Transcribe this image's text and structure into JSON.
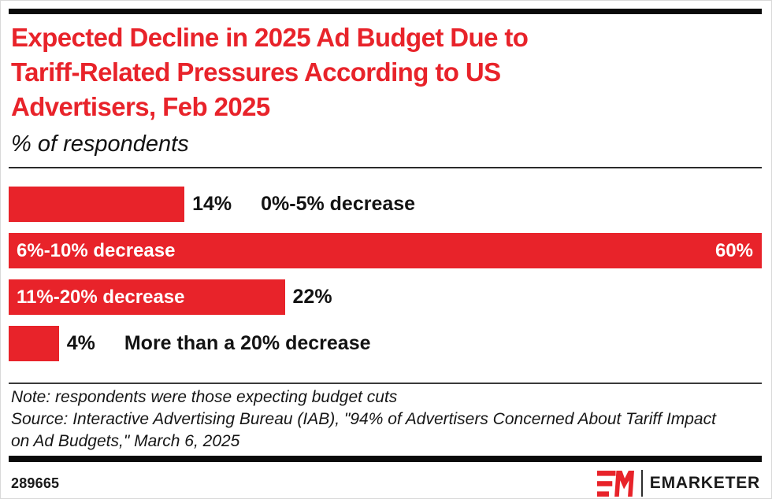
{
  "page": {
    "background": "#ffffff",
    "accent_red": "#E8232A",
    "rule_black": "#0a0a0a"
  },
  "header": {
    "title": "Expected Decline in 2025 Ad Budget Due to Tariff-Related Pressures According to US Advertisers, Feb 2025",
    "title_lines": [
      "Expected Decline in 2025 Ad Budget Due to",
      "Tariff-Related Pressures According to US",
      "Advertisers, Feb 2025"
    ],
    "subtitle": "% of respondents"
  },
  "chart_data": {
    "type": "bar",
    "orientation": "horizontal",
    "title": "Expected Decline in 2025 Ad Budget Due to Tariff-Related Pressures According to US Advertisers, Feb 2025",
    "subtitle": "% of respondents",
    "categories": [
      "0%-5% decrease",
      "6%-10% decrease",
      "11%-20% decrease",
      "More than a 20% decrease"
    ],
    "values": [
      14,
      60,
      22,
      4
    ],
    "value_labels": [
      "14%",
      "60%",
      "22%",
      "4%"
    ],
    "xlim": [
      0,
      60
    ],
    "grid": false,
    "legend": "none",
    "bar_color": "#E8232A",
    "rows": [
      {
        "category": "0%-5% decrease",
        "value": 14,
        "value_label": "14%",
        "category_position": "outside",
        "value_position": "outside"
      },
      {
        "category": "6%-10% decrease",
        "value": 60,
        "value_label": "60%",
        "category_position": "inside",
        "value_position": "inside"
      },
      {
        "category": "11%-20% decrease",
        "value": 22,
        "value_label": "22%",
        "category_position": "inside",
        "value_position": "outside"
      },
      {
        "category": "More than a 20% decrease",
        "value": 4,
        "value_label": "4%",
        "category_position": "outside",
        "value_position": "outside"
      }
    ]
  },
  "footnote": {
    "note": "Note: respondents were those expecting budget cuts",
    "source": "Source: Interactive Advertising Bureau (IAB), \"94% of Advertisers Concerned About Tariff Impact on Ad Budgets,\" March 6, 2025"
  },
  "footer": {
    "chart_id": "289665",
    "brand": "EMARKETER"
  }
}
